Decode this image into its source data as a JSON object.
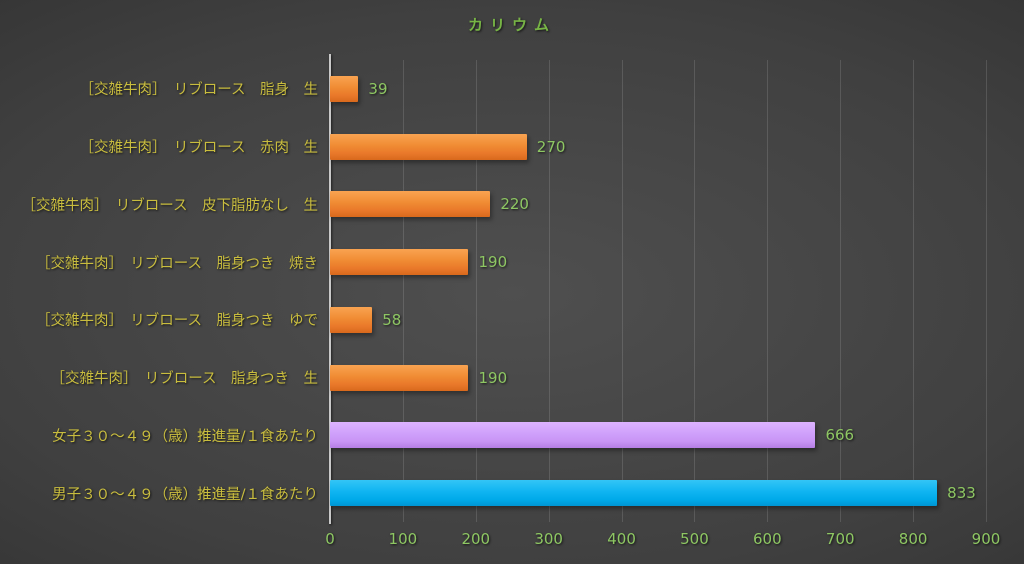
{
  "title": "カリウム",
  "colors": {
    "title_green": "#77b445",
    "category_yellow": "#c9bd3e",
    "value_green": "#8ec763",
    "tick_green": "#8ec763",
    "orange": "#ed7d31",
    "purple": "#cc99ff",
    "cyan": "#00b0f0",
    "gridline": "rgba(255,255,255,0.13)",
    "axis_line": "#c9c9c9"
  },
  "chart_data": {
    "type": "bar",
    "orientation": "horizontal",
    "title": "カリウム",
    "categories": [
      "［交雑牛肉］　リブロース　脂身　生",
      "［交雑牛肉］　リブロース　赤肉　生",
      "［交雑牛肉］　リブロース　皮下脂肪なし　生",
      "［交雑牛肉］　リブロース　脂身つき　焼き",
      "［交雑牛肉］　リブロース　脂身つき　ゆで",
      "［交雑牛肉］　リブロース　脂身つき　生",
      "女子３０～４９（歳）推進量/１食あたり",
      "男子３０～４９（歳）推進量/１食あたり"
    ],
    "values": [
      39,
      270,
      220,
      190,
      58,
      190,
      666,
      833
    ],
    "bar_colors": [
      "orange",
      "orange",
      "orange",
      "orange",
      "orange",
      "orange",
      "purple",
      "cyan"
    ],
    "data_labels": [
      "39",
      "270",
      "220",
      "190",
      "58",
      "190",
      "666",
      "833"
    ],
    "x_ticks": [
      0,
      100,
      200,
      300,
      400,
      500,
      600,
      700,
      800,
      900
    ],
    "xlim": [
      0,
      900
    ],
    "grid": true,
    "legend": false
  }
}
